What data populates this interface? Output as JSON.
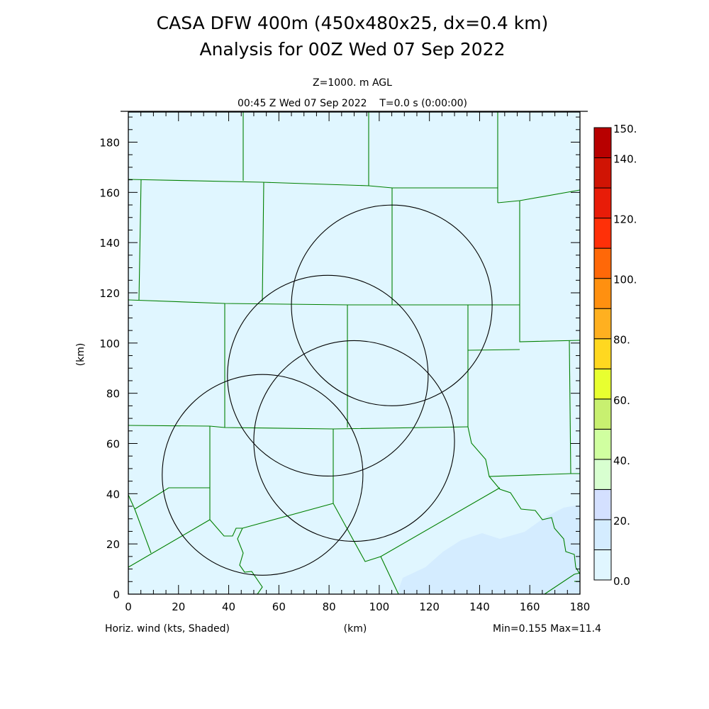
{
  "title": {
    "line1": "CASA DFW 400m (450x480x25, dx=0.4 km)",
    "line2": "Analysis for 00Z Wed 07 Sep 2022"
  },
  "subtitle": {
    "level": "Z=1000. m AGL",
    "time": "00:45 Z Wed 07 Sep 2022    T=0.0 s (0:00:00)"
  },
  "footer": {
    "field": "Horiz. wind (kts, Shaded)",
    "xunit": "(km)",
    "minmax": "Min=0.155 Max=11.4"
  },
  "chart_data": {
    "type": "heatmap",
    "xlabel": "(km)",
    "ylabel": "(km)",
    "xlim": [
      0,
      180
    ],
    "ylim": [
      0,
      192
    ],
    "xticks": [
      "0",
      "20",
      "40",
      "60",
      "80",
      "100",
      "120",
      "140",
      "160",
      "180"
    ],
    "yticks": [
      "0",
      "20",
      "40",
      "60",
      "80",
      "100",
      "120",
      "140",
      "160",
      "180"
    ],
    "field_min": 0.155,
    "field_max": 11.4,
    "radar_rings_km": [
      {
        "x": 105,
        "y": 115,
        "r": 40
      },
      {
        "x": 79.5,
        "y": 87,
        "r": 40
      },
      {
        "x": 90,
        "y": 61,
        "r": 40
      },
      {
        "x": 53.5,
        "y": 47.5,
        "r": 40
      }
    ],
    "colorbar": {
      "levels": [
        0,
        10,
        20,
        30,
        40,
        50,
        60,
        70,
        80,
        90,
        100,
        110,
        120,
        130,
        140,
        150
      ],
      "labels": [
        {
          "value": 0,
          "text": "0.0"
        },
        {
          "value": 20,
          "text": "20."
        },
        {
          "value": 40,
          "text": "40."
        },
        {
          "value": 60,
          "text": "60."
        },
        {
          "value": 80,
          "text": "80."
        },
        {
          "value": 100,
          "text": "100."
        },
        {
          "value": 120,
          "text": "120."
        },
        {
          "value": 140,
          "text": "140."
        },
        {
          "value": 150,
          "text": "150."
        }
      ],
      "colors": [
        "#e0f6ff",
        "#d4ecff",
        "#d4e0ff",
        "#d8ffd0",
        "#d0ffa0",
        "#c8f070",
        "#e8ff30",
        "#ffd820",
        "#ffb020",
        "#ff9010",
        "#ff6808",
        "#ff3008",
        "#e81c08",
        "#d01404",
        "#b80000"
      ]
    },
    "colors": {
      "background_field": "#e0f6ff",
      "shaded_10_20": "#d4ecff",
      "county_lines": "#008000",
      "rings": "#000000"
    }
  }
}
